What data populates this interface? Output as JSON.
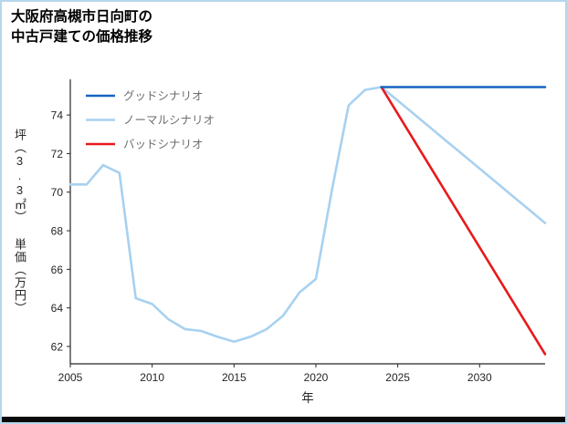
{
  "title": {
    "line1": "大阪府高槻市日向町の",
    "line2": "中古戸建ての価格推移"
  },
  "chart_data": {
    "type": "line",
    "title": "大阪府高槻市日向町の中古戸建ての価格推移",
    "xlabel": "年",
    "ylabel": "坪（3.3㎡） 単価（万円）",
    "xlim": [
      2005,
      2034
    ],
    "ylim": [
      61.1,
      75.85
    ],
    "grid": false,
    "legend_position": "upper left",
    "xticks": [
      2005,
      2010,
      2015,
      2020,
      2025,
      2030
    ],
    "yticks": [
      62,
      64,
      66,
      68,
      70,
      72,
      74
    ],
    "series": [
      {
        "name": "グッドシナリオ",
        "color": "#1565c0",
        "x": [
          2024,
          2025,
          2026,
          2027,
          2028,
          2029,
          2030,
          2031,
          2032,
          2033,
          2034
        ],
        "y": [
          75.45,
          75.45,
          75.45,
          75.45,
          75.45,
          75.45,
          75.45,
          75.45,
          75.45,
          75.45,
          75.45
        ]
      },
      {
        "name": "ノーマルシナリオ",
        "color": "#a8d1f0",
        "x": [
          2005,
          2006,
          2007,
          2008,
          2009,
          2010,
          2011,
          2012,
          2013,
          2014,
          2015,
          2016,
          2017,
          2018,
          2019,
          2020,
          2021,
          2022,
          2023,
          2024,
          2025,
          2026,
          2027,
          2028,
          2029,
          2030,
          2031,
          2032,
          2033,
          2034
        ],
        "y": [
          70.4,
          70.4,
          71.4,
          71.0,
          64.5,
          64.2,
          63.4,
          62.9,
          62.8,
          62.5,
          62.25,
          62.5,
          62.9,
          63.6,
          64.8,
          65.5,
          70.2,
          74.5,
          75.3,
          75.45,
          74.75,
          74.04,
          73.34,
          72.63,
          71.93,
          71.22,
          70.52,
          69.81,
          69.11,
          68.4
        ]
      },
      {
        "name": "バッドシナリオ",
        "color": "#e8191c",
        "x": [
          2024,
          2034
        ],
        "y": [
          75.45,
          61.6
        ]
      }
    ]
  },
  "colors": {
    "axis": "#262626",
    "tick_label": "#262626",
    "legend_text": "#6e6e6e",
    "good": "#1565c0",
    "normal": "#a8d1f0",
    "bad": "#e8191c",
    "frame_border": "#b5d7ea"
  }
}
